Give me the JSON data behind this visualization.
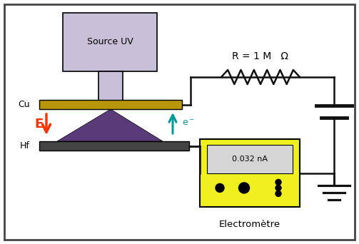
{
  "fig_width": 5.03,
  "fig_height": 3.42,
  "dpi": 100,
  "bg_color": "#ffffff",
  "border_color": "#444444",
  "source_uv_color": "#c8c0d8",
  "source_uv_text": "Source UV",
  "cu_plate_color": "#b8960c",
  "cu_label": "Cu",
  "hf_plate_color": "#444444",
  "hf_label": "Hf",
  "triangle_color": "#5b3a7a",
  "e_arrow_color": "#ff3300",
  "electron_arrow_color": "#009999",
  "resistor_label": "R = 1 M   Ω",
  "electrometer_label": "Electromètre",
  "electrometer_reading": "0.032 nA",
  "electrometer_color": "#f0f020",
  "wire_color": "#111111"
}
